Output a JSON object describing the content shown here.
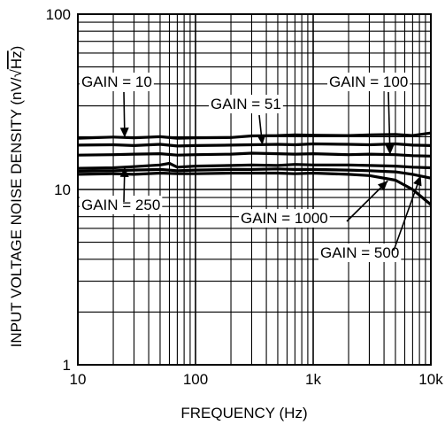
{
  "chart_data": {
    "type": "line",
    "xlabel": "FREQUENCY (Hz)",
    "ylabel_prefix": "INPUT VOLTAGE NOISE DENSITY (nV/",
    "ylabel_sqrt": "√",
    "ylabel_radicand": "Hz",
    "ylabel_suffix": ")",
    "x_scale": "log",
    "y_scale": "log",
    "xlim": [
      10,
      10000
    ],
    "ylim": [
      1,
      100
    ],
    "x_ticks": [
      {
        "value": 10,
        "label": "10"
      },
      {
        "value": 100,
        "label": "100"
      },
      {
        "value": 1000,
        "label": "1k"
      },
      {
        "value": 10000,
        "label": "10k"
      }
    ],
    "y_ticks": [
      {
        "value": 1,
        "label": "1"
      },
      {
        "value": 10,
        "label": "10"
      },
      {
        "value": 100,
        "label": "100"
      }
    ],
    "grid": true,
    "series": [
      {
        "name": "GAIN = 10",
        "x": [
          10,
          20,
          30,
          50,
          70,
          100,
          200,
          300,
          500,
          700,
          1000,
          2000,
          3000,
          5000,
          7000,
          10000
        ],
        "y": [
          19.6,
          19.9,
          19.7,
          20.0,
          19.6,
          19.7,
          19.8,
          20.2,
          20.3,
          20.5,
          20.4,
          20.3,
          20.5,
          20.6,
          20.3,
          21.0
        ]
      },
      {
        "name": "GAIN = 51",
        "x": [
          10,
          20,
          30,
          50,
          70,
          100,
          200,
          300,
          500,
          700,
          1000,
          2000,
          3000,
          5000,
          7000,
          10000
        ],
        "y": [
          17.9,
          18.0,
          17.8,
          18.1,
          17.7,
          17.8,
          17.9,
          18.0,
          18.1,
          18.0,
          18.2,
          18.1,
          18.0,
          18.2,
          17.9,
          17.8
        ]
      },
      {
        "name": "GAIN = 100",
        "x": [
          10,
          20,
          30,
          50,
          70,
          100,
          200,
          300,
          500,
          700,
          1000,
          2000,
          3000,
          5000,
          7000,
          10000
        ],
        "y": [
          15.7,
          15.8,
          15.9,
          16.0,
          15.7,
          15.8,
          15.9,
          16.1,
          16.0,
          15.9,
          16.0,
          15.8,
          15.9,
          15.8,
          15.6,
          15.5
        ]
      },
      {
        "name": "GAIN = 250",
        "x": [
          10,
          20,
          30,
          50,
          60,
          70,
          100,
          200,
          300,
          500,
          700,
          1000,
          2000,
          3000,
          5000,
          7000,
          10000
        ],
        "y": [
          13.2,
          13.3,
          13.5,
          13.8,
          14.1,
          13.4,
          13.6,
          13.7,
          13.8,
          13.7,
          13.9,
          13.8,
          13.8,
          13.7,
          13.6,
          13.4,
          13.3
        ]
      },
      {
        "name": "GAIN = 500",
        "x": [
          10,
          20,
          30,
          50,
          70,
          100,
          200,
          300,
          500,
          700,
          1000,
          2000,
          3000,
          5000,
          7000,
          10000
        ],
        "y": [
          12.7,
          12.8,
          12.9,
          13.0,
          12.8,
          12.9,
          13.0,
          13.0,
          13.1,
          13.0,
          13.0,
          12.9,
          12.8,
          12.6,
          12.2,
          11.6
        ]
      },
      {
        "name": "GAIN = 1000",
        "x": [
          10,
          20,
          30,
          50,
          70,
          100,
          200,
          300,
          500,
          700,
          1000,
          2000,
          3000,
          5000,
          7000,
          10000
        ],
        "y": [
          12.2,
          12.3,
          12.2,
          12.4,
          12.3,
          12.3,
          12.4,
          12.4,
          12.4,
          12.3,
          12.4,
          12.2,
          12.0,
          11.3,
          10.0,
          8.2
        ]
      }
    ],
    "annotations": [
      {
        "text": "GAIN = 10",
        "series": "GAIN = 10",
        "arrow_to": [
          25,
          19.8
        ]
      },
      {
        "text": "GAIN = 51",
        "series": "GAIN = 51",
        "arrow_to": [
          370,
          18.0
        ]
      },
      {
        "text": "GAIN = 100",
        "series": "GAIN = 100",
        "arrow_to": [
          4500,
          15.8
        ]
      },
      {
        "text": "GAIN = 250",
        "series": "GAIN = 250",
        "arrow_to": [
          25,
          13.4
        ]
      },
      {
        "text": "GAIN = 1000",
        "series": "GAIN = 1000",
        "arrow_to": [
          4300,
          11.2
        ]
      },
      {
        "text": "GAIN = 500",
        "series": "GAIN = 500",
        "arrow_to": [
          8200,
          12.0
        ]
      }
    ]
  },
  "colors": {
    "background": "#ffffff",
    "grid": "#000000",
    "series": "#000000"
  }
}
